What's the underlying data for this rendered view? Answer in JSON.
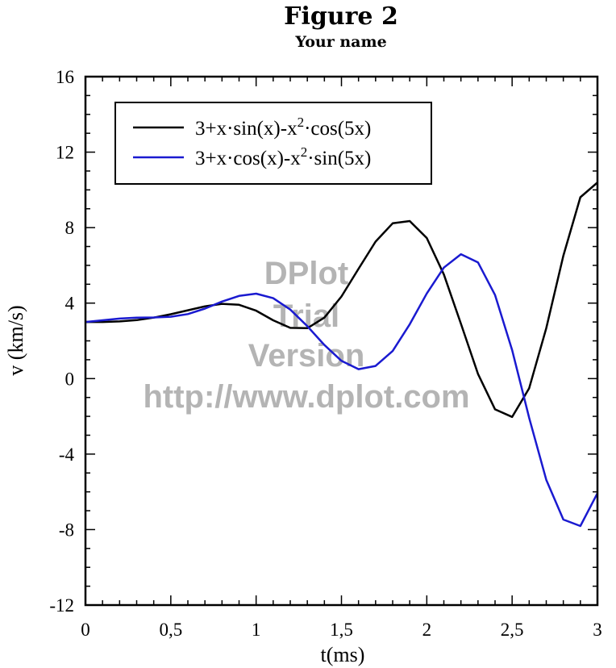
{
  "chart_data": {
    "type": "line",
    "title": "Figure 2",
    "subtitle": "Your name",
    "xlabel": "t(ms)",
    "ylabel": "v (km/s)",
    "xlim": [
      0,
      3
    ],
    "ylim": [
      -12,
      16
    ],
    "xticks": [
      0,
      0.5,
      1,
      1.5,
      2,
      2.5,
      3
    ],
    "xtick_labels": [
      "0",
      "0,5",
      "1",
      "1,5",
      "2",
      "2,5",
      "3"
    ],
    "yticks": [
      -12,
      -8,
      -4,
      0,
      4,
      8,
      12,
      16
    ],
    "ytick_labels": [
      "-12",
      "-8",
      "-4",
      "0",
      "4",
      "8",
      "12",
      "16"
    ],
    "legend_position": "top-left",
    "series": [
      {
        "name_main": "3+x·sin(x)-x",
        "name_sup": "2",
        "name_tail": "·cos(5x)",
        "color": "#000000",
        "x": [
          0,
          0.1,
          0.2,
          0.3,
          0.4,
          0.5,
          0.6,
          0.7,
          0.8,
          0.9,
          1.0,
          1.1,
          1.2,
          1.3,
          1.4,
          1.5,
          1.6,
          1.7,
          1.8,
          1.9,
          2.0,
          2.1,
          2.2,
          2.3,
          2.4,
          2.5,
          2.6,
          2.7,
          2.8,
          2.9,
          3.0
        ],
        "y": [
          3.0,
          3.0,
          3.03,
          3.1,
          3.23,
          3.41,
          3.62,
          3.83,
          3.96,
          3.91,
          3.6,
          3.09,
          2.69,
          2.67,
          3.23,
          4.35,
          5.82,
          7.26,
          8.23,
          8.35,
          7.45,
          5.52,
          2.9,
          0.25,
          -1.63,
          -2.03,
          -0.51,
          2.67,
          6.51,
          9.61,
          10.39
        ]
      },
      {
        "name_main": "3+x·cos(x)-x",
        "name_sup": "2",
        "name_tail": "·sin(5x)",
        "color": "#1a1ad0",
        "x": [
          0,
          0.1,
          0.2,
          0.3,
          0.4,
          0.5,
          0.6,
          0.7,
          0.8,
          0.9,
          1.0,
          1.1,
          1.2,
          1.3,
          1.4,
          1.5,
          1.6,
          1.7,
          1.8,
          1.9,
          2.0,
          2.1,
          2.2,
          2.3,
          2.4,
          2.5,
          2.6,
          2.7,
          2.8,
          2.9,
          3.0
        ],
        "y": [
          3.0,
          3.09,
          3.18,
          3.23,
          3.24,
          3.28,
          3.42,
          3.71,
          4.08,
          4.38,
          4.5,
          4.26,
          3.66,
          2.78,
          1.78,
          0.94,
          0.5,
          0.67,
          1.46,
          2.88,
          4.51,
          5.88,
          6.59,
          6.16,
          4.43,
          1.51,
          -2.08,
          -5.36,
          -7.47,
          -7.81,
          -6.07
        ]
      }
    ],
    "watermark": [
      "DPlot",
      "Trial",
      "Version",
      "http://www.dplot.com"
    ]
  }
}
